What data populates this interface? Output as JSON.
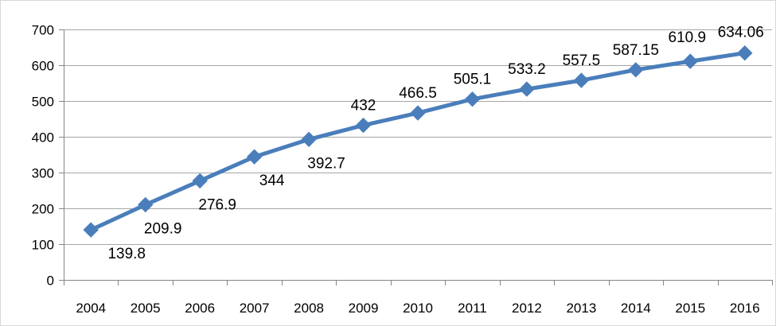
{
  "chart_data": {
    "type": "line",
    "title": "",
    "xlabel": "",
    "ylabel": "",
    "categories": [
      "2004",
      "2005",
      "2006",
      "2007",
      "2008",
      "2009",
      "2010",
      "2011",
      "2012",
      "2013",
      "2014",
      "2015",
      "2016"
    ],
    "series": [
      {
        "values": [
          139.8,
          209.9,
          276.9,
          344,
          392.7,
          432,
          466.5,
          505.1,
          533.2,
          557.5,
          587.15,
          610.9,
          634.06
        ],
        "labels": [
          "139.8",
          "209.9",
          "276.9",
          "344",
          "392.7",
          "432",
          "466.5",
          "505.1",
          "533.2",
          "557.5",
          "587.15",
          "610.9",
          "634.06"
        ],
        "color": "#4a7ebb",
        "marker": "diamond"
      }
    ],
    "ylim": [
      0,
      700
    ],
    "yticks": [
      0,
      100,
      200,
      300,
      400,
      500,
      600,
      700
    ],
    "ytick_labels": [
      "0",
      "100",
      "200",
      "300",
      "400",
      "500",
      "600",
      "700"
    ],
    "grid": true,
    "legend": "none"
  }
}
